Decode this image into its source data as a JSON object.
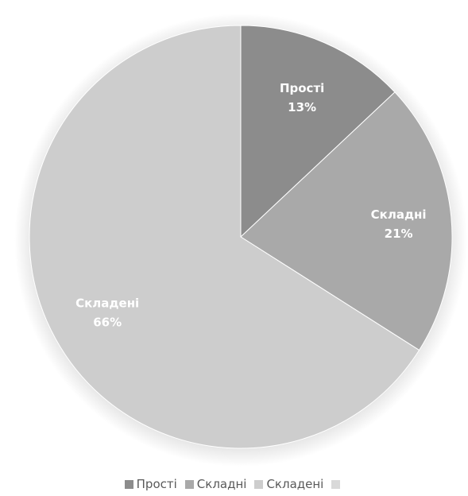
{
  "chart_data": {
    "type": "pie",
    "categories": [
      "Прості",
      "Складні",
      "Складені",
      ""
    ],
    "values": [
      13,
      21,
      66,
      0
    ],
    "labels": [
      {
        "name": "Прості",
        "pct": "13%"
      },
      {
        "name": "Складні",
        "pct": "21%"
      },
      {
        "name": "Складені",
        "pct": "66%"
      }
    ],
    "colors": [
      "#8c8c8c",
      "#a9a9a9",
      "#cdcdcd",
      "#d9d9d9"
    ],
    "start_angle_deg": 0,
    "direction": "clockwise",
    "legend_position": "bottom"
  }
}
